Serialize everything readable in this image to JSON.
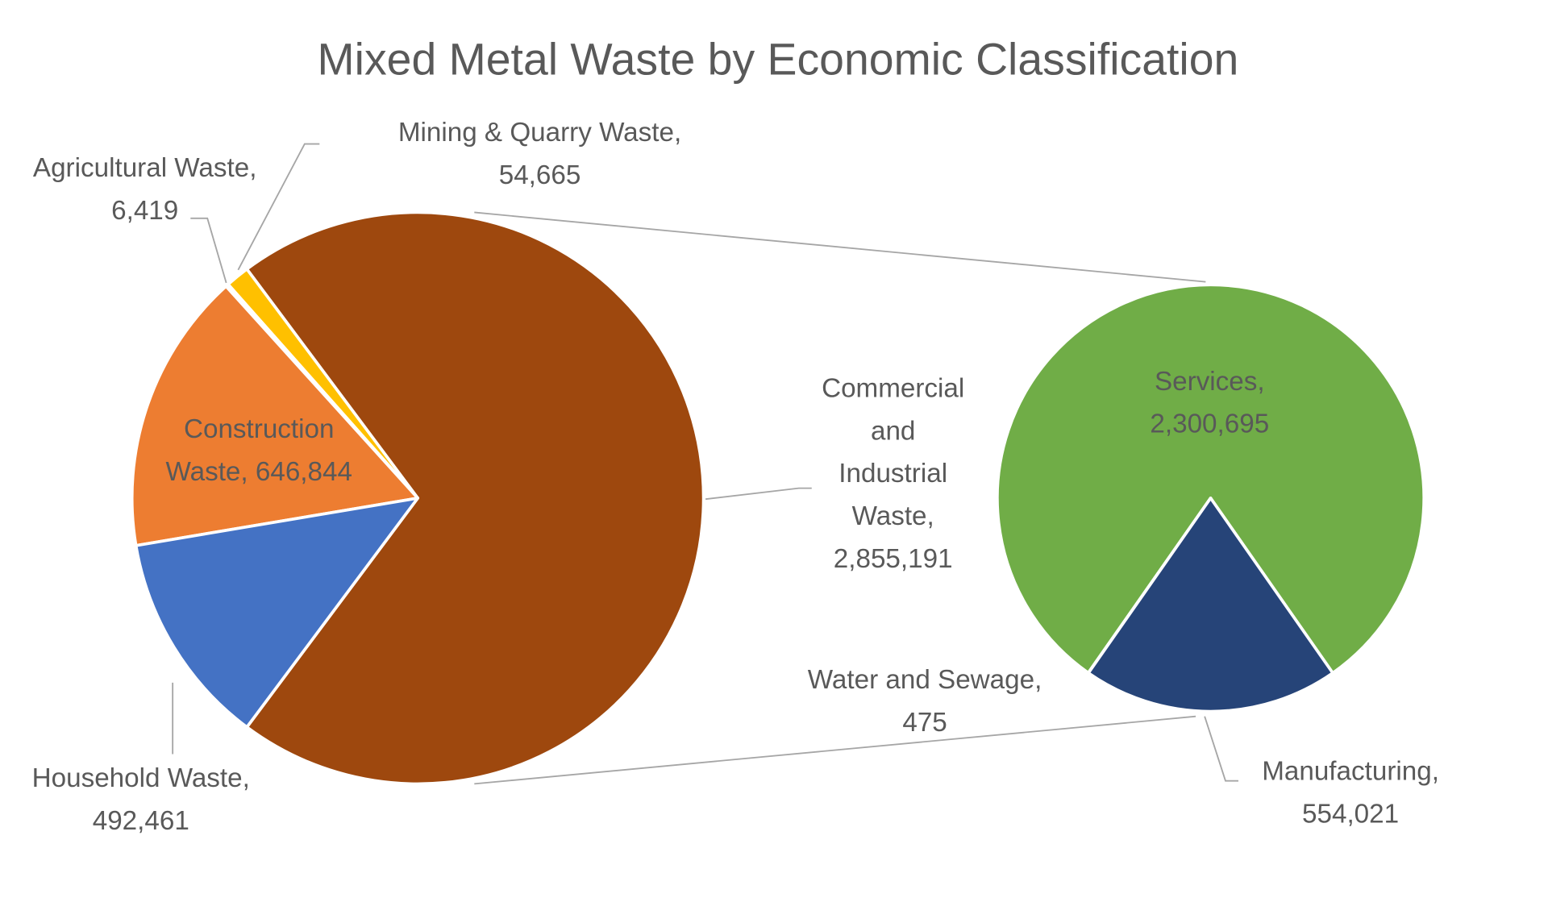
{
  "chart_data": {
    "type": "pie-of-pie",
    "title": "Mixed Metal Waste by Economic Classification",
    "primary": {
      "slices": [
        {
          "name": "Commercial and Industrial Waste",
          "value": 2855191,
          "label_lines": [
            "Commercial",
            "and",
            "Industrial",
            "Waste,",
            "2,855,191"
          ],
          "color": "#9E480E"
        },
        {
          "name": "Mining & Quarry Waste",
          "value": 54665,
          "label_lines": [
            "Mining & Quarry Waste,",
            "54,665"
          ],
          "color": "#FFC000"
        },
        {
          "name": "Agricultural Waste",
          "value": 6419,
          "label_lines": [
            "Agricultural Waste,",
            "6,419"
          ],
          "color": "#A5A5A5"
        },
        {
          "name": "Construction Waste",
          "value": 646844,
          "label_lines": [
            "Construction",
            "Waste, 646,844"
          ],
          "color": "#ED7D31"
        },
        {
          "name": "Household Waste",
          "value": 492461,
          "label_lines": [
            "Household Waste,",
            "492,461"
          ],
          "color": "#4472C4"
        }
      ]
    },
    "secondary": {
      "parent": "Commercial and Industrial Waste",
      "slices": [
        {
          "name": "Services",
          "value": 2300695,
          "label_lines": [
            "Services,",
            "2,300,695"
          ],
          "color": "#70AD47"
        },
        {
          "name": "Water and Sewage",
          "value": 475,
          "label_lines": [
            "Water and Sewage,",
            "475"
          ],
          "color": "#5B9BD5"
        },
        {
          "name": "Manufacturing",
          "value": 554021,
          "label_lines": [
            "Manufacturing,",
            "554,021"
          ],
          "color": "#264478"
        }
      ]
    }
  }
}
